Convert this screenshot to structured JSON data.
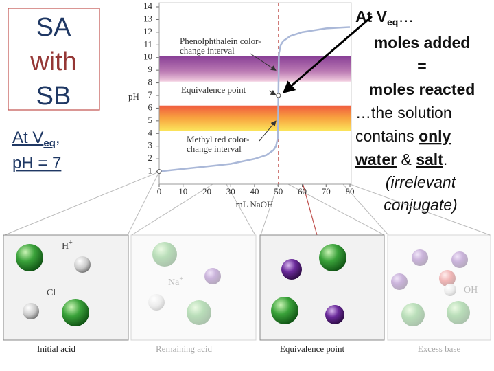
{
  "slide": {
    "box_lines": [
      "SA",
      "with",
      "SB"
    ],
    "note": {
      "prefix": "At V",
      "sub": "eq",
      "suffix": ",",
      "line2": "pH = 7"
    },
    "right": {
      "head": {
        "prefix": "At V",
        "sub": "eq",
        "suffix": "…"
      },
      "bold_lines": [
        "moles added",
        "=",
        "moles reacted"
      ],
      "sentence": {
        "line1": "…the solution",
        "contains": "contains ",
        "only": "only",
        "water": "water",
        "amp": " & ",
        "salt": "salt",
        "period": "."
      },
      "italic_lines": [
        "(irrelevant",
        "conjugate)"
      ]
    },
    "panels": [
      {
        "label": "Initial acid",
        "ions": [
          {
            "symbol": "H",
            "charge": "+"
          },
          {
            "symbol": "Cl",
            "charge": "−"
          }
        ]
      },
      {
        "label": "Remaining acid",
        "ions": [
          {
            "symbol": "Na",
            "charge": "+"
          }
        ]
      },
      {
        "label": "Equivalence point",
        "ions": []
      },
      {
        "label": "Excess base",
        "ions": [
          {
            "symbol": "OH",
            "charge": "−"
          }
        ]
      }
    ]
  },
  "chart_data": {
    "type": "line",
    "x_label": "mL NaOH",
    "y_label": "pH",
    "x": [
      0,
      10,
      20,
      30,
      40,
      45,
      48,
      49,
      49.8,
      50,
      50.2,
      51,
      52,
      55,
      60,
      70,
      80
    ],
    "series": [
      {
        "color": "#aab8d8",
        "values": [
          1,
          1.2,
          1.4,
          1.6,
          2,
          2.3,
          2.7,
          3,
          3.7,
          7,
          10.3,
          11,
          11.3,
          11.7,
          12,
          12.3,
          12.4
        ]
      }
    ],
    "xlim": [
      0,
      80
    ],
    "ylim": [
      0,
      14
    ],
    "xticks": [
      0,
      10,
      20,
      30,
      40,
      50,
      60,
      70,
      80
    ],
    "yticks": [
      1,
      2,
      3,
      4,
      5,
      6,
      7,
      8,
      9,
      10,
      11,
      12,
      13,
      14
    ],
    "bands": [
      {
        "lines": [
          "Phenolphthalein color-",
          "change interval"
        ],
        "range": [
          8.1,
          10.1
        ],
        "gradient": "purple"
      },
      {
        "lines": [
          "Methyl red color-",
          "change interval"
        ],
        "range": [
          4.2,
          6.2
        ],
        "gradient": "orange"
      }
    ],
    "equivalence": {
      "label": "Equivalence point",
      "x": 50,
      "y": 7,
      "color": "#c0504d"
    }
  }
}
